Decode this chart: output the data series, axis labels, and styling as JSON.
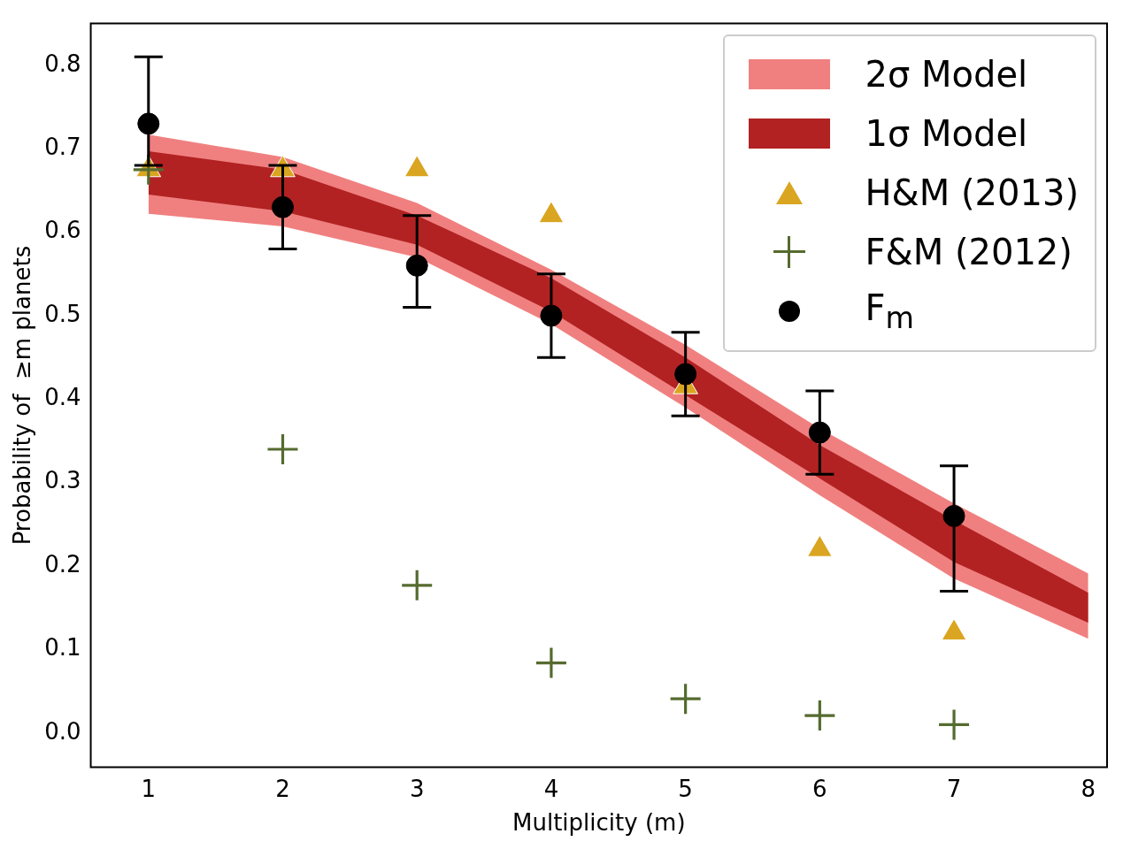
{
  "chart_data": {
    "type": "scatter",
    "xlabel": "Multiplicity (m)",
    "ylabel": "Probability of  ≥m planets",
    "xlim": [
      0.57,
      8.14
    ],
    "ylim": [
      -0.041,
      0.85
    ],
    "xticks": [
      1,
      2,
      3,
      4,
      5,
      6,
      7,
      8
    ],
    "yticks": [
      {
        "value": 0,
        "label": "0.0"
      },
      0.1,
      0.2,
      0.3,
      0.4,
      0.5,
      0.6,
      0.7,
      0.8
    ],
    "grid": false,
    "legend": "top right",
    "series": [
      {
        "name": "2σ Model",
        "type": "line",
        "color": "#f08080",
        "x": [
          1,
          2,
          3,
          4,
          5,
          6,
          7,
          8
        ],
        "values": [
          null,
          null,
          null,
          null,
          null,
          null,
          null,
          null
        ],
        "lower": [
          0.622,
          0.607,
          0.57,
          0.49,
          0.39,
          0.285,
          0.185,
          0.113
        ],
        "upper": [
          0.717,
          0.69,
          0.635,
          0.555,
          0.465,
          0.365,
          0.275,
          0.191
        ]
      },
      {
        "name": "1σ Model",
        "type": "line",
        "color": "#b22222",
        "x": [
          1,
          2,
          3,
          4,
          5,
          6,
          7,
          8
        ],
        "values": [
          null,
          null,
          null,
          null,
          null,
          null,
          null,
          null
        ],
        "lower": [
          0.645,
          0.625,
          0.585,
          0.505,
          0.405,
          0.305,
          0.205,
          0.132
        ],
        "upper": [
          0.697,
          0.675,
          0.62,
          0.545,
          0.45,
          0.345,
          0.255,
          0.168
        ]
      },
      {
        "name": "H&M (2013)",
        "marker": "triangle",
        "color": "#daa520",
        "x": [
          1,
          2,
          3,
          4,
          5,
          6,
          7
        ],
        "values": [
          0.675,
          0.675,
          0.675,
          0.62,
          0.415,
          0.22,
          0.12
        ]
      },
      {
        "name": "F&M (2012)",
        "marker": "cross",
        "color": "#556b2f",
        "x": [
          1,
          2,
          3,
          4,
          5,
          6,
          7
        ],
        "values": [
          0.675,
          0.34,
          0.177,
          0.084,
          0.041,
          0.021,
          0.01
        ]
      },
      {
        "name": "F$_{m}$",
        "marker": "circle",
        "color": "#000000",
        "x": [
          1,
          2,
          3,
          4,
          5,
          6,
          7
        ],
        "values": [
          0.73,
          0.63,
          0.56,
          0.5,
          0.43,
          0.36,
          0.26
        ],
        "errors": [
          [
            0.68,
            0.81
          ],
          [
            0.58,
            0.68
          ],
          [
            0.51,
            0.62
          ],
          [
            0.45,
            0.55
          ],
          [
            0.38,
            0.48
          ],
          [
            0.31,
            0.41
          ],
          [
            0.17,
            0.32
          ]
        ]
      }
    ]
  }
}
